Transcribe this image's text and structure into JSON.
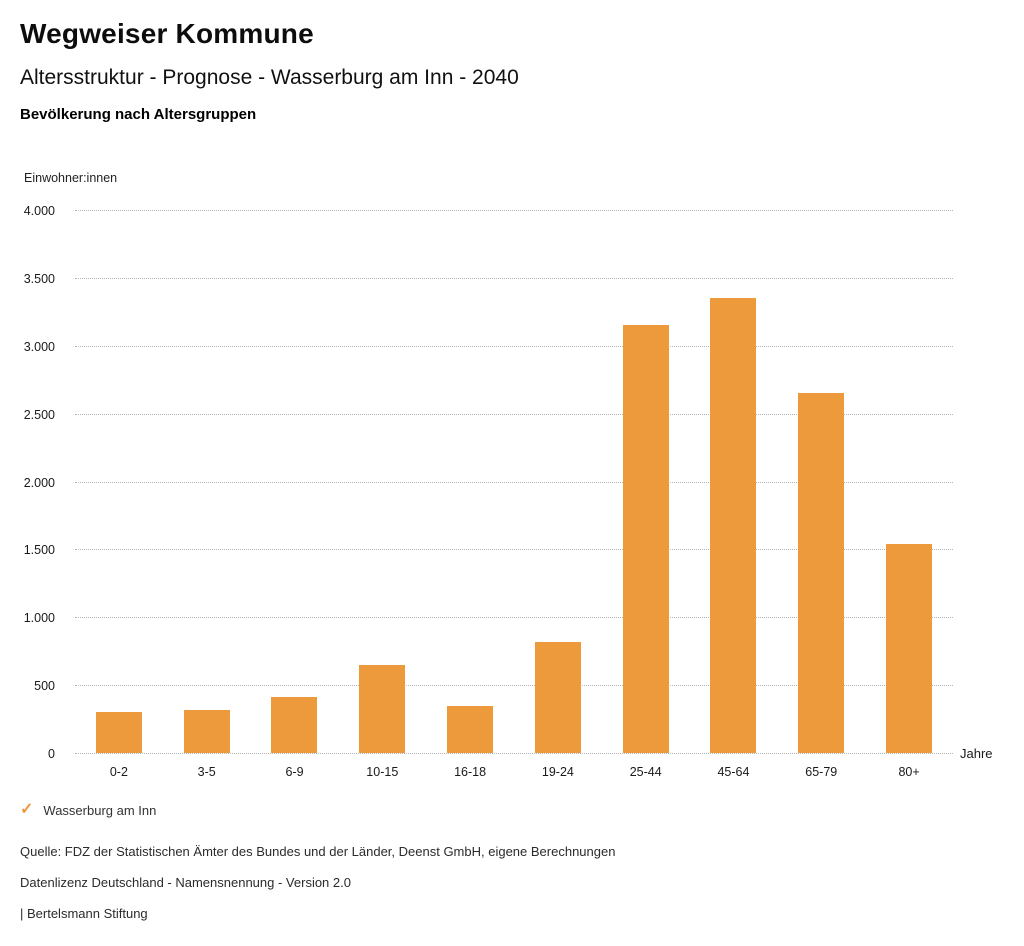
{
  "header": {
    "title": "Wegweiser Kommune",
    "subtitle": "Altersstruktur - Prognose - Wasserburg am Inn - 2040",
    "chart_heading": "Bevölkerung nach Altersgruppen"
  },
  "chart_data": {
    "type": "bar",
    "title": "Bevölkerung nach Altersgruppen",
    "series_name": "Wasserburg am Inn",
    "categories": [
      "0-2",
      "3-5",
      "6-9",
      "10-15",
      "16-18",
      "19-24",
      "25-44",
      "45-64",
      "65-79",
      "80+"
    ],
    "values": [
      300,
      315,
      410,
      650,
      350,
      820,
      3150,
      3350,
      2650,
      1540
    ],
    "xlabel": "Jahre",
    "ylabel": "Einwohner:innen",
    "ylim": [
      0,
      4000
    ],
    "ytick_step": 500,
    "ytick_labels": [
      "4.000",
      "3.500",
      "3.000",
      "2.500",
      "2.000",
      "1.500",
      "1.000",
      "500",
      "0"
    ],
    "grid": "horizontal-dotted",
    "legend_position": "bottom-left",
    "bar_color": "#EC9A3C"
  },
  "legend": {
    "check_icon": "✓",
    "label": "Wasserburg am Inn"
  },
  "footer": {
    "source": "Quelle: FDZ der Statistischen Ämter des Bundes und der Länder, Deenst GmbH, eigene Berechnungen",
    "license": "Datenlizenz Deutschland - Namensnennung - Version 2.0",
    "attribution": "| Bertelsmann Stiftung"
  },
  "colors": {
    "accent": "#EC9A3C",
    "grid": "#B5B5B5",
    "text": "#1A1A1A"
  }
}
